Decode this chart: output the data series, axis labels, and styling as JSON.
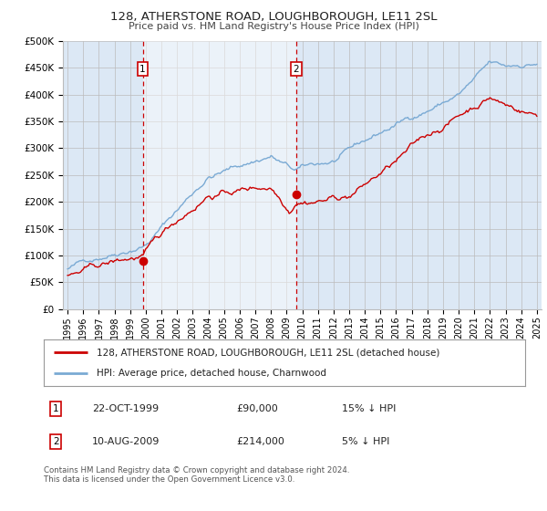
{
  "title": "128, ATHERSTONE ROAD, LOUGHBOROUGH, LE11 2SL",
  "subtitle": "Price paid vs. HM Land Registry's House Price Index (HPI)",
  "footer": "Contains HM Land Registry data © Crown copyright and database right 2024.\nThis data is licensed under the Open Government Licence v3.0.",
  "legend_line1": "128, ATHERSTONE ROAD, LOUGHBOROUGH, LE11 2SL (detached house)",
  "legend_line2": "HPI: Average price, detached house, Charnwood",
  "sale1_date": "22-OCT-1999",
  "sale1_price": "£90,000",
  "sale1_hpi": "15% ↓ HPI",
  "sale1_year": 1999.8,
  "sale1_value": 90000,
  "sale2_date": "10-AUG-2009",
  "sale2_price": "£214,000",
  "sale2_hpi": "5% ↓ HPI",
  "sale2_year": 2009.6,
  "sale2_value": 214000,
  "hpi_color": "#7aaad4",
  "property_color": "#cc0000",
  "bg_color": "#dce8f5",
  "shade_color": "#dce8f5",
  "grid_color": "#bbbbbb",
  "marker_box_color": "#cc0000",
  "ylim": [
    0,
    500000
  ],
  "yticks": [
    0,
    50000,
    100000,
    150000,
    200000,
    250000,
    300000,
    350000,
    400000,
    450000,
    500000
  ],
  "ytick_labels": [
    "£0",
    "£50K",
    "£100K",
    "£150K",
    "£200K",
    "£250K",
    "£300K",
    "£350K",
    "£400K",
    "£450K",
    "£500K"
  ]
}
